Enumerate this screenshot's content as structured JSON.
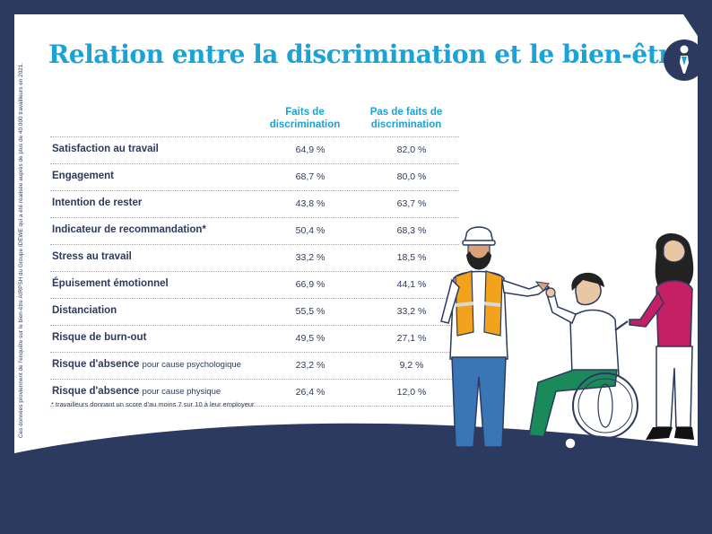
{
  "side_note": "Ces données proviennent de l'enquête sur le bien-être AIRPSH du Groupe IDEWE qui a été réalisée auprès de plus de 40.000 travailleurs en 2021.",
  "title": "Relation entre la discrimination et le bien-être",
  "columns": [
    "Faits de discrimination",
    "Pas de faits de discrimination"
  ],
  "rows": [
    {
      "label": "Satisfaction au travail",
      "suffix": "",
      "with": "64,9 %",
      "without": "82,0 %"
    },
    {
      "label": "Engagement",
      "suffix": "",
      "with": "68,7 %",
      "without": "80,0 %"
    },
    {
      "label": "Intention de rester",
      "suffix": "",
      "with": "43,8 %",
      "without": "63,7 %"
    },
    {
      "label": "Indicateur de recommandation*",
      "suffix": "",
      "with": "50,4 %",
      "without": "68,3 %"
    },
    {
      "label": "Stress au travail",
      "suffix": "",
      "with": "33,2 %",
      "without": "18,5 %"
    },
    {
      "label": "Épuisement émotionnel",
      "suffix": "",
      "with": "66,9 %",
      "without": "44,1 %"
    },
    {
      "label": "Distanciation",
      "suffix": "",
      "with": "55,5 %",
      "without": "33,2 %"
    },
    {
      "label": "Risque de burn-out",
      "suffix": "",
      "with": "49,5 %",
      "without": "27,1 %"
    },
    {
      "label": "Risque d'absence",
      "suffix": "pour cause psychologique",
      "with": "23,2 %",
      "without": "9,2 %"
    },
    {
      "label": "Risque d'absence",
      "suffix": "pour cause physique",
      "with": "26,4 %",
      "without": "12,0 %"
    }
  ],
  "footnote": "* travailleurs donnant un score d'au moins 7 sur 10 à leur employeur",
  "colors": {
    "accent": "#1aa3d6",
    "navy": "#2b3a5e",
    "background": "#ffffff"
  },
  "icons": [
    "person-logo-icon"
  ],
  "illustration": "workers-group-illustration"
}
